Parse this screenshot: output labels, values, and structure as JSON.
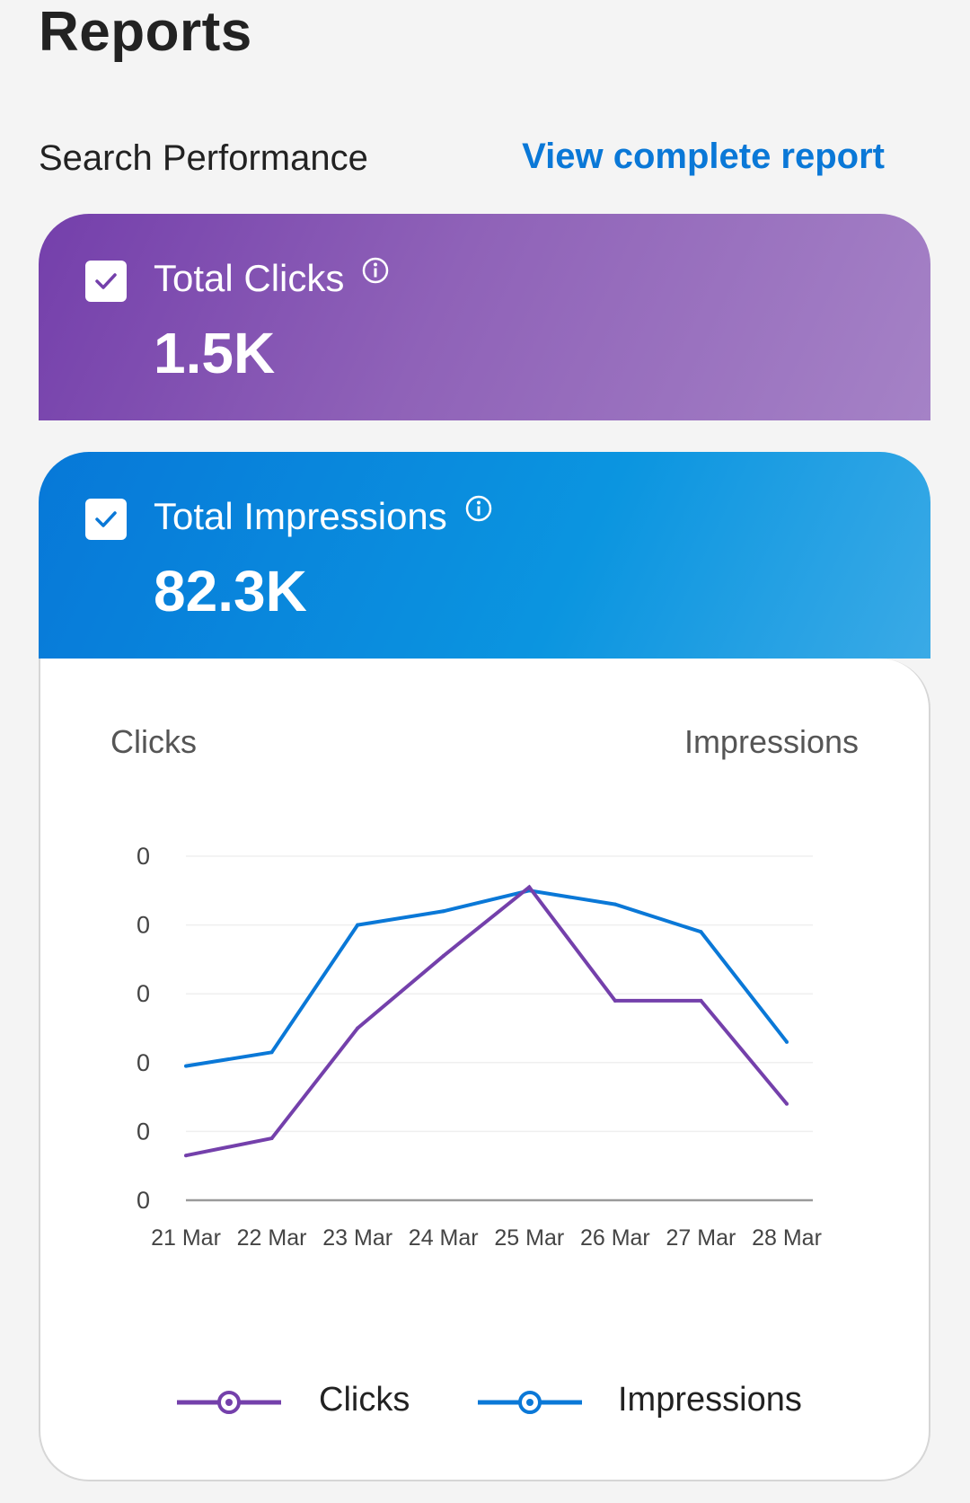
{
  "page": {
    "title": "Reports"
  },
  "section": {
    "title": "Search Performance",
    "link": "View complete report"
  },
  "cards": {
    "clicks": {
      "label": "Total Clicks",
      "value": "1.5K",
      "checked": true
    },
    "impressions": {
      "label": "Total Impressions",
      "value": "82.3K",
      "checked": true
    }
  },
  "colors": {
    "clicks": "#7440ab",
    "impressions": "#0a78d7",
    "link": "#0a78d7"
  },
  "icons": {
    "check": "check-icon",
    "info": "info-icon"
  },
  "chart": {
    "left_axis_title": "Clicks",
    "right_axis_title": "Impressions",
    "legend": [
      "Clicks",
      "Impressions"
    ]
  },
  "chart_data": {
    "type": "line",
    "x": [
      "21 Mar",
      "22 Mar",
      "23 Mar",
      "24 Mar",
      "25 Mar",
      "26 Mar",
      "27 Mar",
      "28 Mar"
    ],
    "y_tick_labels": [
      "0",
      "0",
      "0",
      "0",
      "0",
      "0"
    ],
    "series": [
      {
        "name": "Clicks",
        "values": [
          0.65,
          0.9,
          2.5,
          3.55,
          4.55,
          2.9,
          2.9,
          1.4
        ],
        "axis": "left"
      },
      {
        "name": "Impressions",
        "values": [
          1.95,
          2.15,
          4.0,
          4.2,
          4.5,
          4.3,
          3.9,
          2.3
        ],
        "axis": "right"
      }
    ],
    "ylim": [
      0,
      5
    ],
    "grid": true,
    "legend_position": "bottom"
  }
}
